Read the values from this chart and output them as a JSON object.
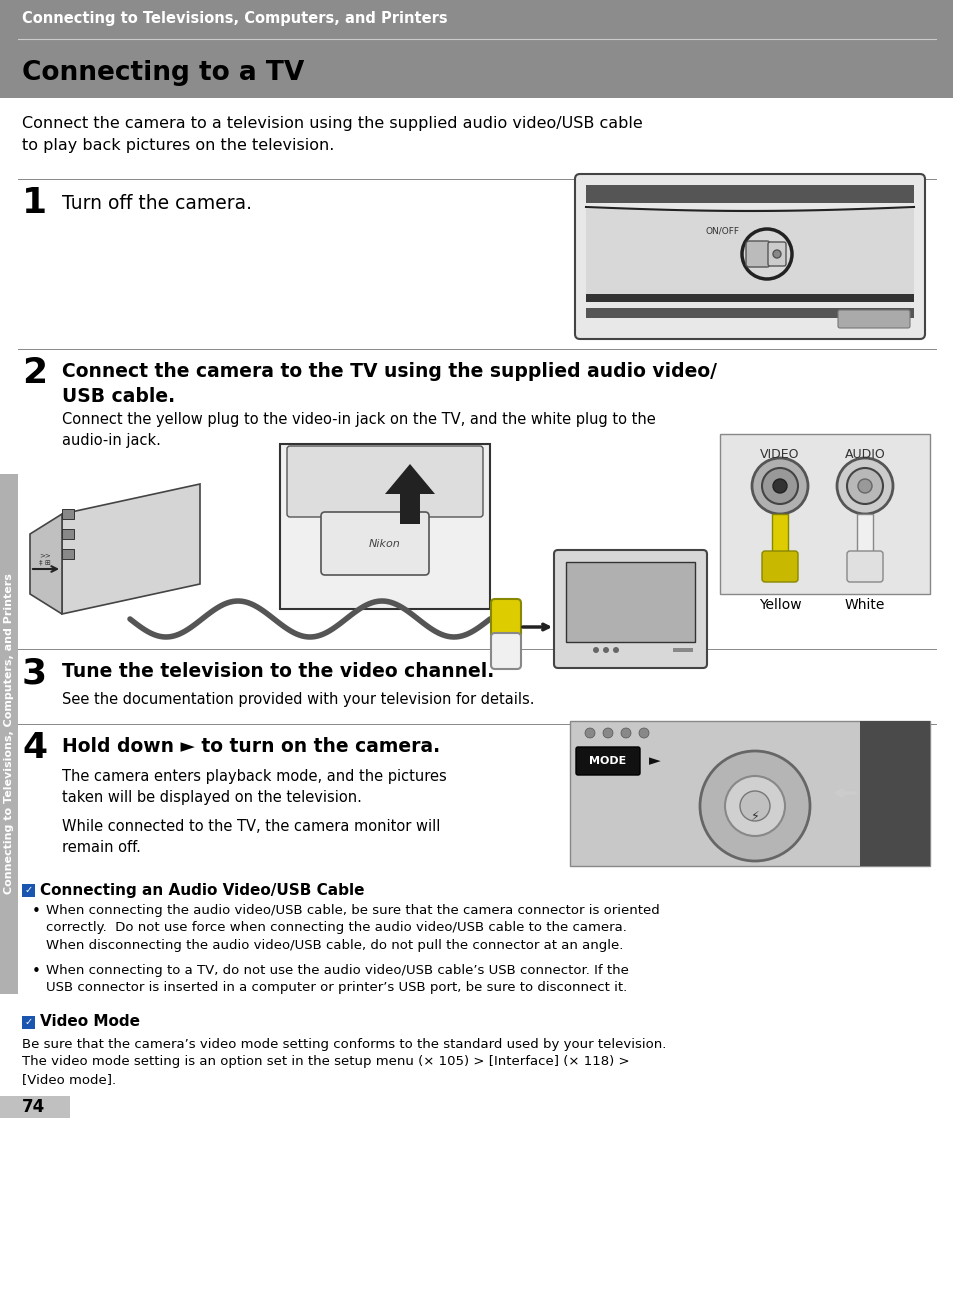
{
  "page_bg": "#ffffff",
  "header_bg": "#8c8c8c",
  "header_text": "Connecting to Televisions, Computers, and Printers",
  "header_text_color": "#ffffff",
  "title_bg": "#8c8c8c",
  "title": "Connecting to a TV",
  "title_color": "#000000",
  "intro_text": "Connect the camera to a television using the supplied audio video/USB cable\nto play back pictures on the television.",
  "sidebar_bg": "#b0b0b0",
  "sidebar_text": "Connecting to Televisions, Computers, and Printers",
  "page_number": "74",
  "step1_num": "1",
  "step1_text": "Turn off the camera.",
  "step2_num": "2",
  "step2_text": "Connect the camera to the TV using the supplied audio video/\nUSB cable.",
  "step2_sub": "Connect the yellow plug to the video-in jack on the TV, and the white plug to the\naudio-in jack.",
  "step3_num": "3",
  "step3_text": "Tune the television to the video channel.",
  "step3_sub": "See the documentation provided with your television for details.",
  "step4_num": "4",
  "step4_text": "Hold down ► to turn on the camera.",
  "step4_sub1": "The camera enters playback mode, and the pictures\ntaken will be displayed on the television.",
  "step4_sub2": "While connected to the TV, the camera monitor will\nremain off.",
  "note1_title": "Connecting an Audio Video/USB Cable",
  "note1_b1": "When connecting the audio video/USB cable, be sure that the camera connector is oriented\ncorrectly.  Do not use force when connecting the audio video/USB cable to the camera.\nWhen disconnecting the audio video/USB cable, do not pull the connector at an angle.",
  "note1_b2": "When connecting to a TV, do not use the audio video/USB cable’s USB connector. If the\nUSB connector is inserted in a computer or printer’s USB port, be sure to disconnect it.",
  "note2_title": "Video Mode",
  "note2_text": "Be sure that the camera’s video mode setting conforms to the standard used by your television.\nThe video mode setting is an option set in the setup menu (× 105) > [Interface] (× 118) >\n[Video mode].",
  "line_color": "#aaaaaa",
  "divider_color": "#888888"
}
